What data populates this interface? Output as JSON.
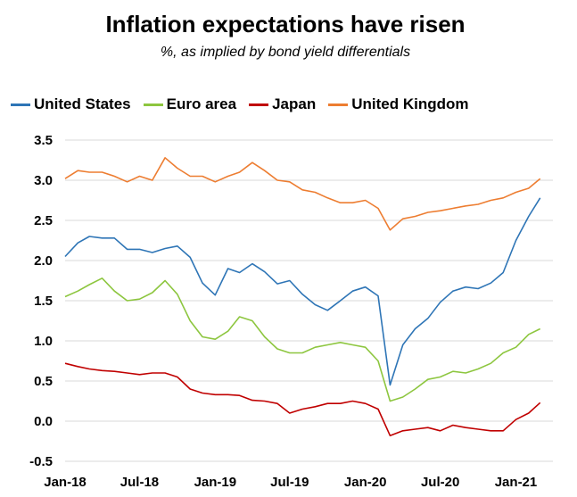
{
  "chart_data": {
    "type": "line",
    "title": "Inflation expectations have risen",
    "subtitle": "%, as implied by bond yield differentials",
    "xlabel": "",
    "ylabel": "",
    "ylim": [
      -0.5,
      3.5
    ],
    "yticks": [
      "3.5",
      "3.0",
      "2.5",
      "2.0",
      "1.5",
      "1.0",
      "0.5",
      "0.0",
      "-0.5"
    ],
    "xticks": [
      "Jan-18",
      "Jul-18",
      "Jan-19",
      "Jul-19",
      "Jan-20",
      "Jul-20",
      "Jan-21"
    ],
    "grid": "horizontal",
    "legend_position": "top",
    "series": [
      {
        "name": "United States",
        "color": "#2E75B6",
        "x": [
          "2018-01",
          "2018-02",
          "2018-03",
          "2018-04",
          "2018-05",
          "2018-06",
          "2018-07",
          "2018-08",
          "2018-09",
          "2018-10",
          "2018-11",
          "2018-12",
          "2019-01",
          "2019-02",
          "2019-03",
          "2019-04",
          "2019-05",
          "2019-06",
          "2019-07",
          "2019-08",
          "2019-09",
          "2019-10",
          "2019-11",
          "2019-12",
          "2020-01",
          "2020-02",
          "2020-03",
          "2020-04",
          "2020-05",
          "2020-06",
          "2020-07",
          "2020-08",
          "2020-09",
          "2020-10",
          "2020-11",
          "2020-12",
          "2021-01",
          "2021-02",
          "2021-03"
        ],
        "values": [
          2.05,
          2.22,
          2.3,
          2.28,
          2.28,
          2.14,
          2.14,
          2.1,
          2.15,
          2.18,
          2.04,
          1.72,
          1.57,
          1.9,
          1.85,
          1.96,
          1.86,
          1.71,
          1.75,
          1.58,
          1.45,
          1.38,
          1.5,
          1.62,
          1.67,
          1.56,
          0.45,
          0.95,
          1.15,
          1.28,
          1.48,
          1.62,
          1.67,
          1.65,
          1.72,
          1.85,
          2.25,
          2.55,
          2.78
        ]
      },
      {
        "name": "Euro area",
        "color": "#8DC63F",
        "x": [
          "2018-01",
          "2018-02",
          "2018-03",
          "2018-04",
          "2018-05",
          "2018-06",
          "2018-07",
          "2018-08",
          "2018-09",
          "2018-10",
          "2018-11",
          "2018-12",
          "2019-01",
          "2019-02",
          "2019-03",
          "2019-04",
          "2019-05",
          "2019-06",
          "2019-07",
          "2019-08",
          "2019-09",
          "2019-10",
          "2019-11",
          "2019-12",
          "2020-01",
          "2020-02",
          "2020-03",
          "2020-04",
          "2020-05",
          "2020-06",
          "2020-07",
          "2020-08",
          "2020-09",
          "2020-10",
          "2020-11",
          "2020-12",
          "2021-01",
          "2021-02",
          "2021-03"
        ],
        "values": [
          1.55,
          1.62,
          1.7,
          1.78,
          1.62,
          1.5,
          1.52,
          1.6,
          1.75,
          1.58,
          1.25,
          1.05,
          1.02,
          1.12,
          1.3,
          1.25,
          1.05,
          0.9,
          0.85,
          0.85,
          0.92,
          0.95,
          0.98,
          0.95,
          0.92,
          0.75,
          0.25,
          0.3,
          0.4,
          0.52,
          0.55,
          0.62,
          0.6,
          0.65,
          0.72,
          0.85,
          0.92,
          1.08,
          1.15
        ]
      },
      {
        "name": "Japan",
        "color": "#C00000",
        "x": [
          "2018-01",
          "2018-02",
          "2018-03",
          "2018-04",
          "2018-05",
          "2018-06",
          "2018-07",
          "2018-08",
          "2018-09",
          "2018-10",
          "2018-11",
          "2018-12",
          "2019-01",
          "2019-02",
          "2019-03",
          "2019-04",
          "2019-05",
          "2019-06",
          "2019-07",
          "2019-08",
          "2019-09",
          "2019-10",
          "2019-11",
          "2019-12",
          "2020-01",
          "2020-02",
          "2020-03",
          "2020-04",
          "2020-05",
          "2020-06",
          "2020-07",
          "2020-08",
          "2020-09",
          "2020-10",
          "2020-11",
          "2020-12",
          "2021-01",
          "2021-02",
          "2021-03"
        ],
        "values": [
          0.72,
          0.68,
          0.65,
          0.63,
          0.62,
          0.6,
          0.58,
          0.6,
          0.6,
          0.55,
          0.4,
          0.35,
          0.33,
          0.33,
          0.32,
          0.26,
          0.25,
          0.22,
          0.1,
          0.15,
          0.18,
          0.22,
          0.22,
          0.25,
          0.22,
          0.15,
          -0.18,
          -0.12,
          -0.1,
          -0.08,
          -0.12,
          -0.05,
          -0.08,
          -0.1,
          -0.12,
          -0.12,
          0.02,
          0.1,
          0.23
        ]
      },
      {
        "name": "United Kingdom",
        "color": "#ED7D31",
        "x": [
          "2018-01",
          "2018-02",
          "2018-03",
          "2018-04",
          "2018-05",
          "2018-06",
          "2018-07",
          "2018-08",
          "2018-09",
          "2018-10",
          "2018-11",
          "2018-12",
          "2019-01",
          "2019-02",
          "2019-03",
          "2019-04",
          "2019-05",
          "2019-06",
          "2019-07",
          "2019-08",
          "2019-09",
          "2019-10",
          "2019-11",
          "2019-12",
          "2020-01",
          "2020-02",
          "2020-03",
          "2020-04",
          "2020-05",
          "2020-06",
          "2020-07",
          "2020-08",
          "2020-09",
          "2020-10",
          "2020-11",
          "2020-12",
          "2021-01",
          "2021-02",
          "2021-03"
        ],
        "values": [
          3.02,
          3.12,
          3.1,
          3.1,
          3.05,
          2.98,
          3.05,
          3.0,
          3.28,
          3.15,
          3.05,
          3.05,
          2.98,
          3.05,
          3.1,
          3.22,
          3.12,
          3.0,
          2.98,
          2.88,
          2.85,
          2.78,
          2.72,
          2.72,
          2.75,
          2.65,
          2.38,
          2.52,
          2.55,
          2.6,
          2.62,
          2.65,
          2.68,
          2.7,
          2.75,
          2.78,
          2.85,
          2.9,
          3.02
        ]
      }
    ]
  }
}
